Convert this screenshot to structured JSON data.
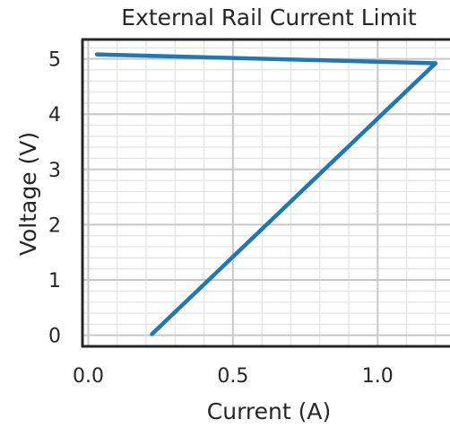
{
  "chart_data": {
    "type": "line",
    "title": "External Rail Current Limit",
    "xlabel": "Current (A)",
    "ylabel": "Voltage (V)",
    "xlim": [
      -0.02,
      1.25
    ],
    "ylim": [
      -0.2,
      5.35
    ],
    "xticks": [
      0.0,
      0.5,
      1.0
    ],
    "xtick_labels": [
      "0.0",
      "0.5",
      "1.0"
    ],
    "xminor_step": 0.1,
    "yticks": [
      0,
      1,
      2,
      3,
      4,
      5
    ],
    "ytick_labels": [
      "0",
      "1",
      "2",
      "3",
      "4",
      "5"
    ],
    "yminor_step": 0.2,
    "grid": true,
    "series": [
      {
        "color": "#1f77b4",
        "x": [
          0.22,
          1.2,
          0.1,
          0.03
        ],
        "y": [
          0.02,
          4.92,
          5.07,
          5.08
        ]
      }
    ]
  }
}
